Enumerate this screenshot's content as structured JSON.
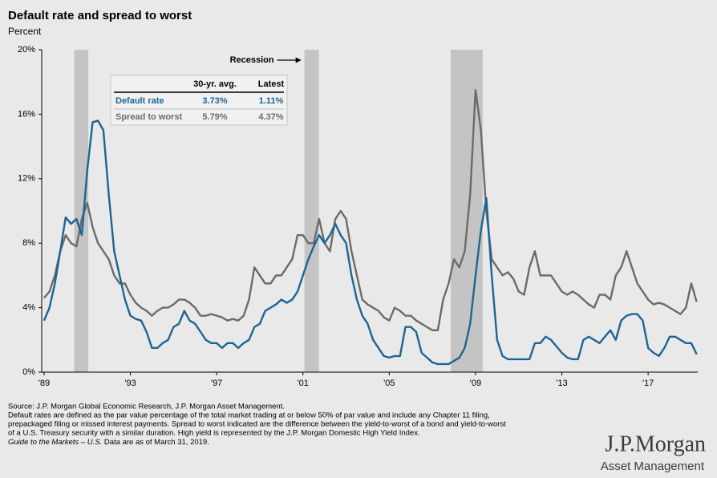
{
  "chart_data": {
    "type": "line",
    "title": "Default rate and spread to worst",
    "y_label": "Percent",
    "annotation": "Recession",
    "x": [
      1989.0,
      1989.25,
      1989.5,
      1989.75,
      1990.0,
      1990.25,
      1990.5,
      1990.75,
      1991.0,
      1991.25,
      1991.5,
      1991.75,
      1992.0,
      1992.25,
      1992.5,
      1992.75,
      1993.0,
      1993.25,
      1993.5,
      1993.75,
      1994.0,
      1994.25,
      1994.5,
      1994.75,
      1995.0,
      1995.25,
      1995.5,
      1995.75,
      1996.0,
      1996.25,
      1996.5,
      1996.75,
      1997.0,
      1997.25,
      1997.5,
      1997.75,
      1998.0,
      1998.25,
      1998.5,
      1998.75,
      1999.0,
      1999.25,
      1999.5,
      1999.75,
      2000.0,
      2000.25,
      2000.5,
      2000.75,
      2001.0,
      2001.25,
      2001.5,
      2001.75,
      2002.0,
      2002.25,
      2002.5,
      2002.75,
      2003.0,
      2003.25,
      2003.5,
      2003.75,
      2004.0,
      2004.25,
      2004.5,
      2004.75,
      2005.0,
      2005.25,
      2005.5,
      2005.75,
      2006.0,
      2006.25,
      2006.5,
      2006.75,
      2007.0,
      2007.25,
      2007.5,
      2007.75,
      2008.0,
      2008.25,
      2008.5,
      2008.75,
      2009.0,
      2009.25,
      2009.5,
      2009.75,
      2010.0,
      2010.25,
      2010.5,
      2010.75,
      2011.0,
      2011.25,
      2011.5,
      2011.75,
      2012.0,
      2012.25,
      2012.5,
      2012.75,
      2013.0,
      2013.25,
      2013.5,
      2013.75,
      2014.0,
      2014.25,
      2014.5,
      2014.75,
      2015.0,
      2015.25,
      2015.5,
      2015.75,
      2016.0,
      2016.25,
      2016.5,
      2016.75,
      2017.0,
      2017.25,
      2017.5,
      2017.75,
      2018.0,
      2018.25,
      2018.5,
      2018.75,
      2019.0,
      2019.25
    ],
    "series": [
      {
        "name": "Default rate",
        "color": "#1d6592",
        "values": [
          3.2,
          4.0,
          5.5,
          7.5,
          9.6,
          9.2,
          9.5,
          8.5,
          12.5,
          15.5,
          15.6,
          15.0,
          11.0,
          7.5,
          6.0,
          4.5,
          3.5,
          3.3,
          3.2,
          2.5,
          1.5,
          1.5,
          1.8,
          2.0,
          2.8,
          3.0,
          3.8,
          3.2,
          3.0,
          2.5,
          2.0,
          1.8,
          1.8,
          1.5,
          1.8,
          1.8,
          1.5,
          1.8,
          2.0,
          2.8,
          3.0,
          3.8,
          4.0,
          4.2,
          4.5,
          4.3,
          4.5,
          5.0,
          6.0,
          7.0,
          7.8,
          8.5,
          8.0,
          8.5,
          9.2,
          8.5,
          8.0,
          6.0,
          4.5,
          3.5,
          3.0,
          2.0,
          1.5,
          1.0,
          0.9,
          1.0,
          1.0,
          2.8,
          2.8,
          2.5,
          1.2,
          0.9,
          0.6,
          0.5,
          0.5,
          0.5,
          0.7,
          0.9,
          1.5,
          3.0,
          6.0,
          8.8,
          10.8,
          6.0,
          2.0,
          1.0,
          0.8,
          0.8,
          0.8,
          0.8,
          0.8,
          1.8,
          1.8,
          2.2,
          2.0,
          1.6,
          1.2,
          0.9,
          0.8,
          0.8,
          2.0,
          2.2,
          2.0,
          1.8,
          2.2,
          2.6,
          2.0,
          3.2,
          3.5,
          3.6,
          3.6,
          3.2,
          1.5,
          1.2,
          1.0,
          1.5,
          2.2,
          2.2,
          2.0,
          1.8,
          1.8,
          1.11
        ]
      },
      {
        "name": "Spread to worst",
        "color": "#6b6b6b",
        "values": [
          4.6,
          5.0,
          6.0,
          7.5,
          8.5,
          8.0,
          7.8,
          9.5,
          10.5,
          9.0,
          8.0,
          7.5,
          7.0,
          6.0,
          5.5,
          5.5,
          4.8,
          4.3,
          4.0,
          3.8,
          3.5,
          3.8,
          4.0,
          4.0,
          4.2,
          4.5,
          4.5,
          4.3,
          4.0,
          3.5,
          3.5,
          3.6,
          3.5,
          3.4,
          3.2,
          3.3,
          3.2,
          3.5,
          4.5,
          6.5,
          6.0,
          5.5,
          5.5,
          6.0,
          6.0,
          6.5,
          7.0,
          8.5,
          8.5,
          8.0,
          8.0,
          9.5,
          8.0,
          7.5,
          9.5,
          10.0,
          9.5,
          7.5,
          6.0,
          4.5,
          4.2,
          4.0,
          3.8,
          3.4,
          3.2,
          4.0,
          3.8,
          3.5,
          3.5,
          3.2,
          3.0,
          2.8,
          2.6,
          2.6,
          4.5,
          5.5,
          7.0,
          6.5,
          7.5,
          11.0,
          17.5,
          15.0,
          10.0,
          7.0,
          6.5,
          6.0,
          6.2,
          5.8,
          5.0,
          4.8,
          6.5,
          7.5,
          6.0,
          6.0,
          6.0,
          5.5,
          5.0,
          4.8,
          5.0,
          4.8,
          4.5,
          4.2,
          4.0,
          4.8,
          4.8,
          4.5,
          6.0,
          6.5,
          7.5,
          6.5,
          5.5,
          5.0,
          4.5,
          4.2,
          4.3,
          4.2,
          4.0,
          3.8,
          3.6,
          4.0,
          5.5,
          4.37
        ]
      }
    ],
    "recessions": [
      [
        1990.4,
        1991.05
      ],
      [
        2001.07,
        2001.74
      ],
      [
        2007.85,
        2009.33
      ]
    ],
    "recession_color": "#c4c4c4",
    "xlim": [
      1988.89,
      2019.3
    ],
    "ylim": [
      0,
      20
    ],
    "xticks": [
      {
        "value": 1989,
        "label": "'89"
      },
      {
        "value": 1993,
        "label": "'93"
      },
      {
        "value": 1997,
        "label": "'97"
      },
      {
        "value": 2001,
        "label": "'01"
      },
      {
        "value": 2005,
        "label": "'05"
      },
      {
        "value": 2009,
        "label": "'09"
      },
      {
        "value": 2013,
        "label": "'13"
      },
      {
        "value": 2017,
        "label": "'17"
      }
    ],
    "yticks": [
      {
        "value": 0,
        "label": "0%"
      },
      {
        "value": 4,
        "label": "4%"
      },
      {
        "value": 8,
        "label": "8%"
      },
      {
        "value": 12,
        "label": "12%"
      },
      {
        "value": 16,
        "label": "16%"
      },
      {
        "value": 20,
        "label": "20%"
      }
    ],
    "inset": {
      "header": [
        "30-yr. avg.",
        "Latest"
      ],
      "rows": [
        [
          "Default rate",
          "3.73%",
          "1.11%"
        ],
        [
          "Spread to worst",
          "5.79%",
          "4.37%"
        ]
      ]
    }
  },
  "footer": {
    "notes": [
      "Source: J.P. Morgan Global Economic Research, J.P. Morgan Asset Management.",
      "Default rates are defined as the par value percentage of the total market trading at or below 50% of par value and include any Chapter 11 filing,",
      "prepackaged filing or missed interest payments. Spread to worst indicated are the difference between the yield-to-worst of a bond and yield-to-worst",
      "of a U.S. Treasury security with a similar duration. High yield is represented by the J.P. Morgan Domestic High Yield Index."
    ],
    "guide": "Guide to the Markets – U.S.",
    "date_note": " Data are as of March 31, 2019.",
    "brand": "J.P.Morgan",
    "brand_sub": "Asset Management"
  }
}
